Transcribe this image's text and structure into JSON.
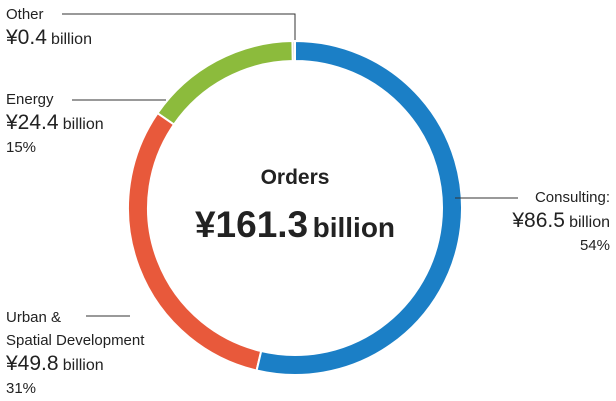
{
  "chart_data": {
    "type": "donut",
    "title": "Orders",
    "total_label": "¥161.3",
    "unit": "billion",
    "categories": [
      "Consulting:",
      "Urban &\nSpatial Development",
      "Energy",
      "Other"
    ],
    "values": [
      86.5,
      49.8,
      24.4,
      0.4
    ],
    "value_labels": [
      "¥86.5",
      "¥49.8",
      "¥24.4",
      "¥0.4"
    ],
    "percent_labels": [
      "54%",
      "31%",
      "15%",
      null
    ],
    "colors": [
      "#1b7fc6",
      "#e8593b",
      "#8cbb3c",
      "#c9c9c9"
    ]
  }
}
